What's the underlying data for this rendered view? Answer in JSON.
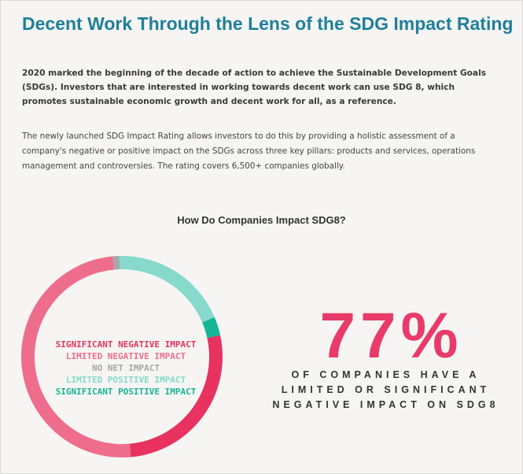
{
  "title": "Decent Work Through the Lens of the SDG Impact Rating",
  "intro": "2020 marked the beginning of the decade of action to achieve the Sustainable Development Goals (SDGs). Investors that are interested in working towards decent work can use SDG 8, which promotes sustainable economic growth and decent work for all, as a reference.",
  "body": "The newly launched SDG Impact Rating allows investors to do this by providing a holistic assessment of a company's negative or positive impact on the SDGs across three key pillars: products and services, operations management and controversies. The rating covers 6,500+ companies globally.",
  "chart_data": {
    "type": "pie",
    "title": "How Do Companies Impact SDG8?",
    "categories": [
      "SIGNIFICANT NEGATIVE IMPACT",
      "LIMITED NEGATIVE IMPACT",
      "NO NET IMPACT",
      "LIMITED POSITIVE IMPACT",
      "SIGNIFICANT POSITIVE IMPACT"
    ],
    "values": [
      27,
      50,
      1,
      19,
      3
    ],
    "colors": [
      "#e8325f",
      "#ef6d8c",
      "#a6a6a6",
      "#86d9cb",
      "#16b595"
    ],
    "legend_placement": "center"
  },
  "stat": {
    "value": "77%",
    "caption_lines": [
      "OF COMPANIES HAVE A",
      "LIMITED OR SIGNIFICANT",
      "NEGATIVE IMPACT ON SDG8"
    ]
  }
}
